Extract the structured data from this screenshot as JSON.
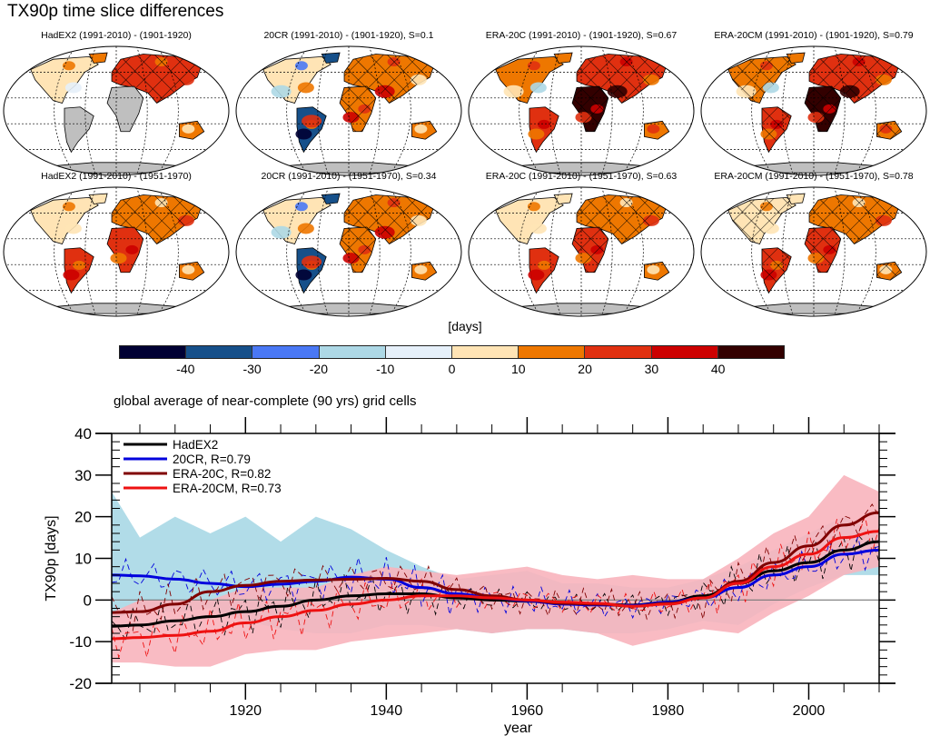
{
  "figure": {
    "title": "TX90p time slice differences"
  },
  "maps": {
    "row1": [
      {
        "title": "HadEX2 (1991-2010) - (1901-1920)",
        "dataset": "HadEX2",
        "S": null,
        "coverage": "partial",
        "palette_bias": "warm-north"
      },
      {
        "title": "20CR (1991-2010) - (1901-1920), S=0.1",
        "dataset": "20CR",
        "S": 0.1,
        "coverage": "full",
        "palette_bias": "mixed"
      },
      {
        "title": "ERA-20C (1991-2010) - (1901-1920), S=0.67",
        "dataset": "ERA-20C",
        "S": 0.67,
        "coverage": "full",
        "palette_bias": "hot"
      },
      {
        "title": "ERA-20CM (1991-2010) - (1901-1920), S=0.79",
        "dataset": "ERA-20CM",
        "S": 0.79,
        "coverage": "full",
        "palette_bias": "hot"
      }
    ],
    "row2": [
      {
        "title": "HadEX2 (1991-2010) - (1951-1970)",
        "dataset": "HadEX2",
        "S": null,
        "coverage": "partial2",
        "palette_bias": "warm"
      },
      {
        "title": "20CR (1991-2010) - (1951-1970), S=0.34",
        "dataset": "20CR",
        "S": 0.34,
        "coverage": "full",
        "palette_bias": "mixed"
      },
      {
        "title": "ERA-20C (1991-2010) - (1951-1970), S=0.63",
        "dataset": "ERA-20C",
        "S": 0.63,
        "coverage": "full",
        "palette_bias": "warm"
      },
      {
        "title": "ERA-20CM (1991-2010) - (1951-1970), S=0.78",
        "dataset": "ERA-20CM",
        "S": 0.78,
        "coverage": "full",
        "palette_bias": "warm"
      }
    ]
  },
  "colorbar": {
    "label": "[days]",
    "ticks": [
      "-40",
      "-30",
      "-20",
      "-10",
      "0",
      "10",
      "20",
      "30",
      "40"
    ],
    "colors": [
      "#000033",
      "#16508a",
      "#4a78f5",
      "#add8e6",
      "#e6f0fa",
      "#ffe4b5",
      "#ee7700",
      "#e03010",
      "#cc0000",
      "#330000"
    ]
  },
  "chart_data": {
    "type": "line",
    "title": "global average of near-complete (90 yrs) grid cells",
    "xlabel": "year",
    "ylabel": "TX90p [days]",
    "xlim": [
      1901,
      2010
    ],
    "ylim": [
      -20,
      40
    ],
    "xticks": [
      1920,
      1940,
      1960,
      1980,
      2000
    ],
    "yticks": [
      -20,
      -10,
      0,
      10,
      20,
      30,
      40
    ],
    "legend_position": "top-left",
    "x": [
      1901,
      1905,
      1910,
      1915,
      1920,
      1925,
      1930,
      1935,
      1940,
      1945,
      1950,
      1955,
      1960,
      1965,
      1970,
      1975,
      1980,
      1985,
      1990,
      1995,
      2000,
      2005,
      2010
    ],
    "series": [
      {
        "name": "HadEX2",
        "legend": "HadEX2",
        "color": "#000000",
        "values": [
          -6.3,
          -6,
          -5,
          -4,
          -2.8,
          -1.5,
          0,
          1,
          1.5,
          1.5,
          0.5,
          0,
          -0.3,
          -0.8,
          -1,
          -1.2,
          -0.5,
          1,
          4,
          7,
          9,
          12,
          14
        ]
      },
      {
        "name": "20CR",
        "legend": "20CR, R=0.79",
        "R": 0.79,
        "color": "#0000dd",
        "values": [
          6,
          5.8,
          5,
          4,
          3.2,
          3.8,
          4.5,
          5.5,
          5,
          3,
          1.5,
          0.5,
          -0.2,
          -1,
          -1.2,
          -1.3,
          -0.5,
          0.5,
          3,
          6,
          8,
          11,
          12
        ]
      },
      {
        "name": "ERA-20C",
        "legend": "ERA-20C, R=0.82",
        "R": 0.82,
        "color": "#800000",
        "values": [
          -3,
          -2.8,
          -1,
          2,
          3.5,
          4.5,
          4.8,
          5,
          5.2,
          4.5,
          2.5,
          1,
          0,
          -0.8,
          -1,
          -1.5,
          -0.8,
          0.5,
          4.5,
          9,
          13,
          18,
          21
        ]
      },
      {
        "name": "ERA-20CM",
        "legend": "ERA-20CM, R=0.73",
        "R": 0.73,
        "color": "#ee1111",
        "values": [
          -9.3,
          -9,
          -8.5,
          -7.5,
          -5.5,
          -4,
          -2.5,
          -1,
          0,
          1,
          1,
          0.5,
          0,
          -0.5,
          -0.8,
          -1.5,
          -1,
          0.5,
          4,
          8,
          11,
          15,
          16.5
        ]
      }
    ],
    "bands": [
      {
        "name": "20CR ensemble spread",
        "color": "#a8d8e6",
        "upper": [
          26,
          15,
          20,
          16,
          20,
          14,
          20,
          17,
          12,
          8,
          5,
          6,
          7,
          4,
          4,
          3,
          3,
          5,
          8,
          12,
          16,
          20,
          16
        ],
        "lower": [
          -5,
          -2,
          -3,
          -2,
          -5,
          -7,
          -8,
          -8,
          -6,
          -6,
          -7,
          -8,
          -7,
          -7,
          -8,
          -8,
          -7,
          -5,
          -6,
          -1,
          3,
          6,
          6
        ]
      },
      {
        "name": "ERA-20CM ensemble spread",
        "color": "#f8b4bc",
        "upper": [
          -3,
          0,
          0,
          0,
          3,
          3,
          3,
          6,
          8,
          7,
          6,
          7,
          8,
          6,
          5,
          6,
          5,
          5,
          10,
          16,
          20,
          30,
          26
        ],
        "lower": [
          -15,
          -15,
          -16,
          -16,
          -13,
          -12,
          -12,
          -10,
          -9,
          -8,
          -7,
          -8,
          -7,
          -7,
          -8,
          -11,
          -9,
          -7,
          -8,
          -3,
          1,
          6,
          8
        ]
      }
    ],
    "annual_dashed": {
      "note": "thin dashed annual values overlaid for each series (shown as noisy dashed lines)"
    },
    "zero_line": true,
    "top_axis_ticks": true,
    "right_axis_ticks": true
  }
}
